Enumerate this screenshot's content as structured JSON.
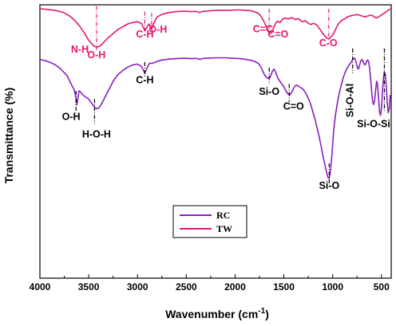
{
  "chart_data": {
    "type": "line",
    "title": "",
    "xlabel": "Wavenumber (cm",
    "xlabel_sup": "-1",
    "xlabel_suffix": ")",
    "ylabel": "Transmittance (%)",
    "xlim": [
      4000,
      400
    ],
    "x_reversed": true,
    "xticks": [
      4000,
      3500,
      3000,
      2500,
      2000,
      1500,
      1000,
      500
    ],
    "yticks_shown": false,
    "grid": false,
    "legend_position": "bottom-center",
    "colors": {
      "RC": "#8a1fc1",
      "TW": "#e5176f"
    },
    "series": [
      {
        "name": "TW",
        "x": [
          4000,
          3950,
          3900,
          3850,
          3800,
          3750,
          3700,
          3650,
          3600,
          3550,
          3500,
          3450,
          3420,
          3380,
          3340,
          3300,
          3250,
          3200,
          3150,
          3100,
          3050,
          3000,
          2960,
          2925,
          2900,
          2880,
          2855,
          2830,
          2800,
          2750,
          2700,
          2650,
          2600,
          2550,
          2500,
          2450,
          2400,
          2360,
          2340,
          2300,
          2250,
          2200,
          2150,
          2100,
          2050,
          2000,
          1950,
          1900,
          1850,
          1800,
          1760,
          1740,
          1720,
          1700,
          1680,
          1660,
          1640,
          1620,
          1600,
          1580,
          1560,
          1540,
          1520,
          1500,
          1480,
          1460,
          1440,
          1420,
          1400,
          1380,
          1360,
          1340,
          1320,
          1300,
          1280,
          1260,
          1240,
          1220,
          1200,
          1180,
          1160,
          1140,
          1120,
          1100,
          1080,
          1060,
          1040,
          1030,
          1010,
          990,
          970,
          950,
          930,
          900,
          870,
          850,
          830,
          810,
          790,
          770,
          750,
          730,
          710,
          690,
          670,
          650,
          630,
          610,
          590,
          570,
          550,
          530,
          510,
          490,
          470,
          450,
          430,
          410
        ],
        "y": [
          98.5,
          98.4,
          98.2,
          98.0,
          97.6,
          97.0,
          96.0,
          94.5,
          92.5,
          90.0,
          87.0,
          85.0,
          84.5,
          85.0,
          86.5,
          88.0,
          89.5,
          91.0,
          92.0,
          93.0,
          93.5,
          93.8,
          93.2,
          90.5,
          92.0,
          93.0,
          91.0,
          93.5,
          95.5,
          96.5,
          97.0,
          97.3,
          97.5,
          97.6,
          97.6,
          97.5,
          97.6,
          97.1,
          97.5,
          97.7,
          97.8,
          97.9,
          98.0,
          98.0,
          98.0,
          98.1,
          98.1,
          98.0,
          97.9,
          97.5,
          96.8,
          96.0,
          95.0,
          93.5,
          92.0,
          90.5,
          89.5,
          90.0,
          92.0,
          93.5,
          94.0,
          93.5,
          94.5,
          95.0,
          95.2,
          94.8,
          95.0,
          95.3,
          95.0,
          94.5,
          95.0,
          94.6,
          94.0,
          93.8,
          94.2,
          93.5,
          93.0,
          92.8,
          93.2,
          93.0,
          92.5,
          91.5,
          90.5,
          89.5,
          88.5,
          87.8,
          87.5,
          87.8,
          88.5,
          89.5,
          91.0,
          92.5,
          93.5,
          94.5,
          95.0,
          95.5,
          95.8,
          96.0,
          96.2,
          96.3,
          96.4,
          96.3,
          96.0,
          95.8,
          95.5,
          95.8,
          96.0,
          96.2,
          96.0,
          95.5,
          95.2,
          95.6,
          96.0,
          96.5,
          97.0,
          97.5,
          98.0,
          98.5
        ]
      },
      {
        "name": "RC",
        "x": [
          4000,
          3950,
          3900,
          3850,
          3800,
          3760,
          3720,
          3680,
          3650,
          3630,
          3620,
          3610,
          3600,
          3580,
          3560,
          3540,
          3520,
          3500,
          3480,
          3460,
          3440,
          3420,
          3400,
          3380,
          3350,
          3300,
          3250,
          3200,
          3150,
          3100,
          3050,
          3000,
          2960,
          2925,
          2900,
          2880,
          2855,
          2830,
          2800,
          2750,
          2700,
          2650,
          2600,
          2550,
          2500,
          2450,
          2400,
          2360,
          2340,
          2300,
          2250,
          2200,
          2150,
          2100,
          2050,
          2000,
          1950,
          1900,
          1850,
          1800,
          1760,
          1740,
          1720,
          1700,
          1680,
          1660,
          1640,
          1620,
          1600,
          1580,
          1560,
          1540,
          1520,
          1500,
          1480,
          1460,
          1440,
          1420,
          1400,
          1380,
          1360,
          1340,
          1320,
          1300,
          1280,
          1260,
          1240,
          1220,
          1200,
          1180,
          1160,
          1140,
          1120,
          1100,
          1080,
          1060,
          1050,
          1040,
          1035,
          1030,
          1020,
          1010,
          1000,
          990,
          970,
          950,
          930,
          910,
          890,
          870,
          850,
          830,
          810,
          795,
          780,
          770,
          760,
          750,
          740,
          730,
          720,
          710,
          700,
          690,
          680,
          670,
          660,
          650,
          640,
          630,
          620,
          610,
          600,
          590,
          580,
          570,
          560,
          550,
          540,
          530,
          520,
          510,
          500,
          490,
          480,
          470,
          460,
          450,
          440,
          430,
          420,
          410
        ],
        "y": [
          80.0,
          79.6,
          79.0,
          78.2,
          77.0,
          75.5,
          74.0,
          71.0,
          69.0,
          66.0,
          63.5,
          66.0,
          68.5,
          68.0,
          67.0,
          66.5,
          66.0,
          65.5,
          64.5,
          63.5,
          62.5,
          62.0,
          62.2,
          63.0,
          65.0,
          68.5,
          72.0,
          74.5,
          76.0,
          77.2,
          78.0,
          78.3,
          77.5,
          75.0,
          77.0,
          78.5,
          78.6,
          78.8,
          79.3,
          79.8,
          80.0,
          80.2,
          80.3,
          80.4,
          80.4,
          80.3,
          80.4,
          80.0,
          80.3,
          80.5,
          80.5,
          80.6,
          80.6,
          80.6,
          80.5,
          80.4,
          80.3,
          80.1,
          79.8,
          79.3,
          78.5,
          77.5,
          76.0,
          74.5,
          73.5,
          73.0,
          73.5,
          75.5,
          76.5,
          75.0,
          73.0,
          72.0,
          71.0,
          70.0,
          68.5,
          67.5,
          67.0,
          68.0,
          69.5,
          70.5,
          70.5,
          70.0,
          69.5,
          69.0,
          68.0,
          66.5,
          65.0,
          63.0,
          60.5,
          58.0,
          55.0,
          52.0,
          48.5,
          45.0,
          41.5,
          38.5,
          37.0,
          36.5,
          36.8,
          37.5,
          40.0,
          44.0,
          49.0,
          54.0,
          60.0,
          64.5,
          68.0,
          71.0,
          73.5,
          75.5,
          77.0,
          78.0,
          79.0,
          80.0,
          80.5,
          80.2,
          79.0,
          77.5,
          76.5,
          77.0,
          78.5,
          79.5,
          80.0,
          79.5,
          78.5,
          78.0,
          78.5,
          79.5,
          79.8,
          79.0,
          76.5,
          72.5,
          68.0,
          64.5,
          63.5,
          65.0,
          68.5,
          72.0,
          71.0,
          66.0,
          61.0,
          59.5,
          62.0,
          68.0,
          73.0,
          75.5,
          74.5,
          70.0,
          64.0,
          60.5,
          62.0,
          67.0
        ]
      }
    ],
    "annotations": [
      {
        "series": "TW",
        "text": "N-H",
        "x": 3500,
        "y": 82.5,
        "align": "end",
        "dy": 0
      },
      {
        "series": "TW",
        "text": "O-H",
        "x": 3420,
        "y": 80.5,
        "align": "middle",
        "dy": 0
      },
      {
        "series": "TW",
        "text": "C-H",
        "x": 2925,
        "y": 88.0,
        "align": "middle",
        "dy": 0
      },
      {
        "series": "TW",
        "text": "O-H",
        "x": 2790,
        "y": 89.8,
        "align": "middle",
        "dy": 0
      },
      {
        "series": "TW",
        "text": "C=C",
        "x": 1715,
        "y": 90.0,
        "align": "middle",
        "dy": 0
      },
      {
        "series": "TW",
        "text": "C=O",
        "x": 1560,
        "y": 88.0,
        "align": "middle",
        "dy": 0
      },
      {
        "series": "TW",
        "text": "C-O",
        "x": 1045,
        "y": 84.8,
        "align": "middle",
        "dy": 0
      },
      {
        "series": "RC",
        "text": "C-H",
        "x": 2925,
        "y": 71.3,
        "align": "middle",
        "dy": 0
      },
      {
        "series": "RC",
        "text": "Si-O",
        "x": 1650,
        "y": 67.0,
        "align": "middle",
        "dy": 0
      },
      {
        "series": "RC",
        "text": "C=O",
        "x": 1400,
        "y": 61.7,
        "align": "middle",
        "dy": 0
      },
      {
        "series": "RC",
        "text": "O-H",
        "x": 3680,
        "y": 57.8,
        "align": "middle",
        "dy": 0
      },
      {
        "series": "RC",
        "text": "H-O-H",
        "x": 3420,
        "y": 51.5,
        "align": "middle",
        "dy": 0
      },
      {
        "series": "RC",
        "text": "Si-O",
        "x": 1035,
        "y": 32.7,
        "align": "middle",
        "dy": 0
      },
      {
        "series": "RC",
        "text": "Si-O-Al",
        "x": 790,
        "y": 65.0,
        "align": "middle",
        "rotate": true
      },
      {
        "series": "RC",
        "text": "Si-O-Si",
        "x": 580,
        "y": 55.2,
        "align": "middle",
        "dy": 0
      }
    ],
    "marker_lines": [
      {
        "series": "TW",
        "x": 3420,
        "y1": 99.5,
        "y2": 83.0
      },
      {
        "series": "TW",
        "x": 2925,
        "y1": 97.5,
        "y2": 89.5
      },
      {
        "series": "TW",
        "x": 2855,
        "y1": 97.0,
        "y2": 91.0
      },
      {
        "series": "TW",
        "x": 1650,
        "y1": 98.5,
        "y2": 89.5
      },
      {
        "series": "TW",
        "x": 1040,
        "y1": 98.5,
        "y2": 87.5
      },
      {
        "series": "RC",
        "x": 3630,
        "y1": 68.5,
        "y2": 60.5
      },
      {
        "series": "RC",
        "x": 3440,
        "y1": 65.5,
        "y2": 56.5
      },
      {
        "series": "RC",
        "x": 2925,
        "y1": 79.0,
        "y2": 73.5
      },
      {
        "series": "RC",
        "x": 1650,
        "y1": 77.0,
        "y2": 71.0
      },
      {
        "series": "RC",
        "x": 1445,
        "y1": 71.0,
        "y2": 64.5
      },
      {
        "series": "RC",
        "x": 1035,
        "y1": 42.0,
        "y2": 34.5
      },
      {
        "series": "RC",
        "x": 795,
        "y1": 84.0,
        "y2": 75.0
      },
      {
        "series": "RC",
        "x": 470,
        "y1": 84.0,
        "y2": 61.0
      }
    ],
    "legend": [
      {
        "name": "RC"
      },
      {
        "name": "TW"
      }
    ]
  }
}
